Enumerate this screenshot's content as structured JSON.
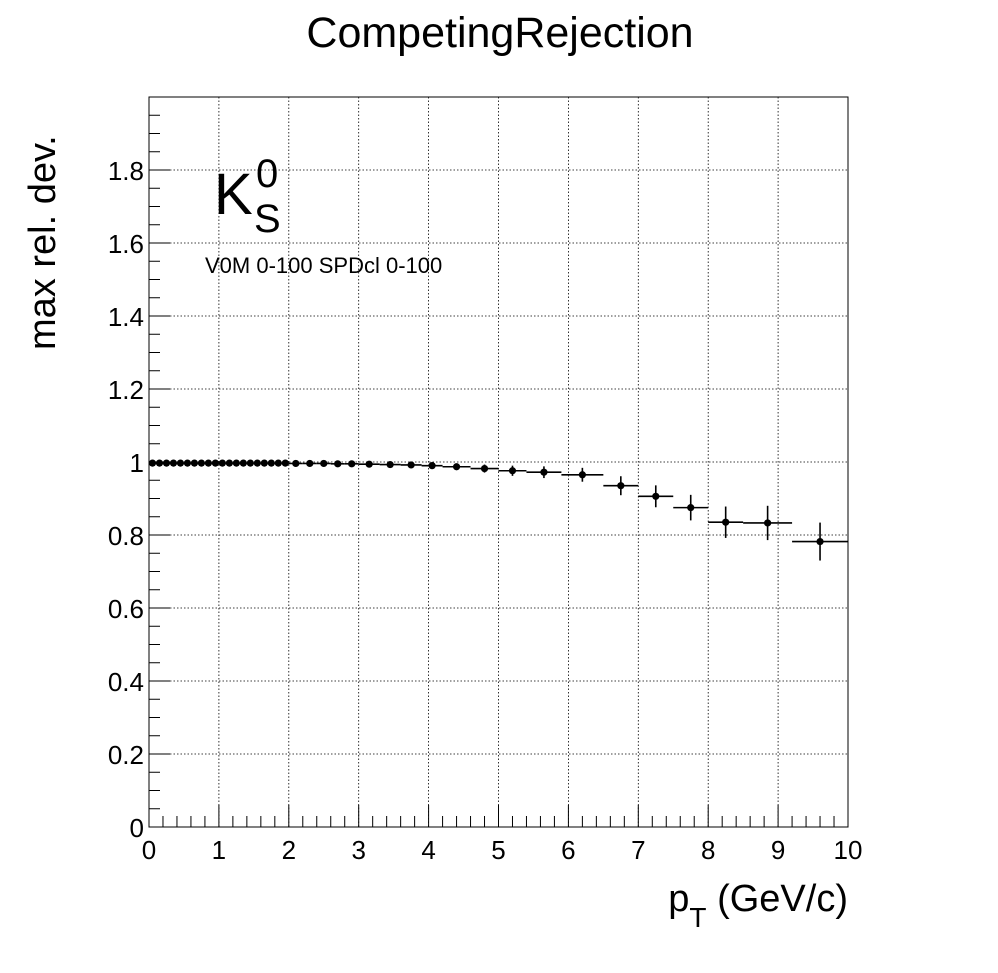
{
  "chart_data": {
    "type": "scatter",
    "title": "CompetingRejection",
    "xlabel_main": "p",
    "xlabel_sub": "T",
    "xlabel_unit": " (GeV/c)",
    "ylabel": "max rel. dev.",
    "particle": {
      "main": "K",
      "sup": "0",
      "sub": "S"
    },
    "annotation": "V0M 0-100 SPDcl 0-100",
    "xlim": [
      0,
      10
    ],
    "ylim": [
      0,
      2
    ],
    "x_ticks": [
      "0",
      "1",
      "2",
      "3",
      "4",
      "5",
      "6",
      "7",
      "8",
      "9",
      "10"
    ],
    "y_ticks": [
      "0",
      "0.2",
      "0.4",
      "0.6",
      "0.8",
      "1",
      "1.2",
      "1.4",
      "1.6",
      "1.8"
    ],
    "grid": true,
    "points": [
      {
        "x": 0.05,
        "xerr": 0.05,
        "y": 0.997,
        "yerr": 0.002
      },
      {
        "x": 0.15,
        "xerr": 0.05,
        "y": 0.997,
        "yerr": 0.002
      },
      {
        "x": 0.25,
        "xerr": 0.05,
        "y": 0.997,
        "yerr": 0.002
      },
      {
        "x": 0.35,
        "xerr": 0.05,
        "y": 0.997,
        "yerr": 0.002
      },
      {
        "x": 0.45,
        "xerr": 0.05,
        "y": 0.997,
        "yerr": 0.002
      },
      {
        "x": 0.55,
        "xerr": 0.05,
        "y": 0.997,
        "yerr": 0.002
      },
      {
        "x": 0.65,
        "xerr": 0.05,
        "y": 0.997,
        "yerr": 0.002
      },
      {
        "x": 0.75,
        "xerr": 0.05,
        "y": 0.997,
        "yerr": 0.002
      },
      {
        "x": 0.85,
        "xerr": 0.05,
        "y": 0.997,
        "yerr": 0.002
      },
      {
        "x": 0.95,
        "xerr": 0.05,
        "y": 0.997,
        "yerr": 0.002
      },
      {
        "x": 1.05,
        "xerr": 0.05,
        "y": 0.997,
        "yerr": 0.002
      },
      {
        "x": 1.15,
        "xerr": 0.05,
        "y": 0.997,
        "yerr": 0.002
      },
      {
        "x": 1.25,
        "xerr": 0.05,
        "y": 0.997,
        "yerr": 0.002
      },
      {
        "x": 1.35,
        "xerr": 0.05,
        "y": 0.997,
        "yerr": 0.002
      },
      {
        "x": 1.45,
        "xerr": 0.05,
        "y": 0.997,
        "yerr": 0.002
      },
      {
        "x": 1.55,
        "xerr": 0.05,
        "y": 0.997,
        "yerr": 0.002
      },
      {
        "x": 1.65,
        "xerr": 0.05,
        "y": 0.997,
        "yerr": 0.002
      },
      {
        "x": 1.75,
        "xerr": 0.05,
        "y": 0.997,
        "yerr": 0.002
      },
      {
        "x": 1.85,
        "xerr": 0.05,
        "y": 0.997,
        "yerr": 0.002
      },
      {
        "x": 1.95,
        "xerr": 0.05,
        "y": 0.997,
        "yerr": 0.002
      },
      {
        "x": 2.1,
        "xerr": 0.1,
        "y": 0.996,
        "yerr": 0.003
      },
      {
        "x": 2.3,
        "xerr": 0.1,
        "y": 0.996,
        "yerr": 0.003
      },
      {
        "x": 2.5,
        "xerr": 0.1,
        "y": 0.996,
        "yerr": 0.003
      },
      {
        "x": 2.7,
        "xerr": 0.1,
        "y": 0.995,
        "yerr": 0.003
      },
      {
        "x": 2.9,
        "xerr": 0.1,
        "y": 0.995,
        "yerr": 0.003
      },
      {
        "x": 3.15,
        "xerr": 0.15,
        "y": 0.994,
        "yerr": 0.004
      },
      {
        "x": 3.45,
        "xerr": 0.15,
        "y": 0.993,
        "yerr": 0.004
      },
      {
        "x": 3.75,
        "xerr": 0.15,
        "y": 0.992,
        "yerr": 0.005
      },
      {
        "x": 4.05,
        "xerr": 0.15,
        "y": 0.99,
        "yerr": 0.006
      },
      {
        "x": 4.4,
        "xerr": 0.2,
        "y": 0.987,
        "yerr": 0.008
      },
      {
        "x": 4.8,
        "xerr": 0.2,
        "y": 0.982,
        "yerr": 0.011
      },
      {
        "x": 5.2,
        "xerr": 0.2,
        "y": 0.976,
        "yerr": 0.014
      },
      {
        "x": 5.65,
        "xerr": 0.25,
        "y": 0.972,
        "yerr": 0.016
      },
      {
        "x": 6.2,
        "xerr": 0.3,
        "y": 0.965,
        "yerr": 0.019
      },
      {
        "x": 6.75,
        "xerr": 0.25,
        "y": 0.935,
        "yerr": 0.026
      },
      {
        "x": 7.25,
        "xerr": 0.25,
        "y": 0.906,
        "yerr": 0.03
      },
      {
        "x": 7.75,
        "xerr": 0.25,
        "y": 0.875,
        "yerr": 0.035
      },
      {
        "x": 8.25,
        "xerr": 0.25,
        "y": 0.835,
        "yerr": 0.043
      },
      {
        "x": 8.85,
        "xerr": 0.35,
        "y": 0.833,
        "yerr": 0.047
      },
      {
        "x": 9.6,
        "xerr": 0.4,
        "y": 0.782,
        "yerr": 0.052
      }
    ]
  }
}
